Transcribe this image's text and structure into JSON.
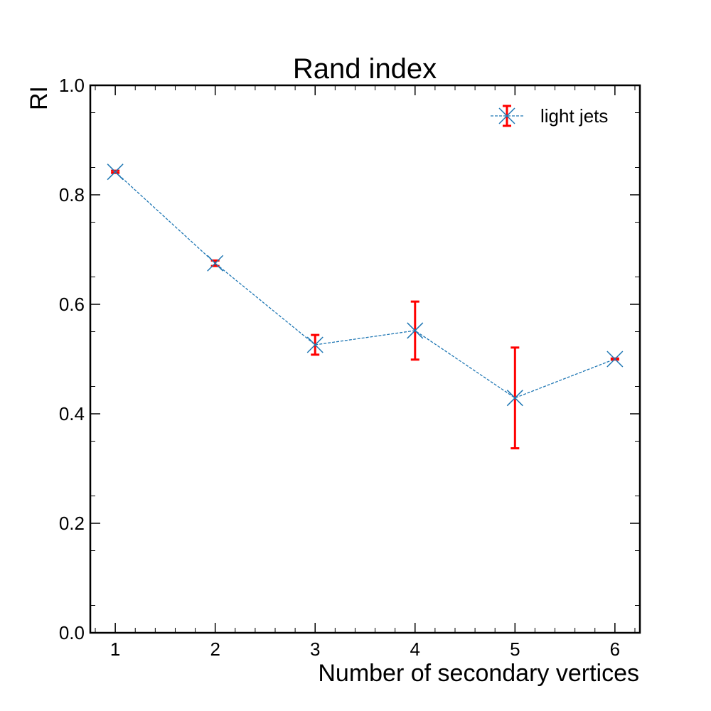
{
  "chart_data": {
    "type": "line",
    "title": "Rand index",
    "xlabel": "Number of secondary vertices",
    "ylabel": "RI",
    "xlim": [
      0.75,
      6.25
    ],
    "ylim": [
      0.0,
      1.0
    ],
    "x_ticks": [
      "1",
      "2",
      "3",
      "4",
      "5",
      "6"
    ],
    "y_ticks": [
      "0.0",
      "0.2",
      "0.4",
      "0.6",
      "0.8",
      "1.0"
    ],
    "grid": false,
    "legend_position": "top-right",
    "series": [
      {
        "name": "light jets",
        "x": [
          1,
          2,
          3,
          4,
          5,
          6
        ],
        "y": [
          0.842,
          0.675,
          0.526,
          0.552,
          0.429,
          0.5
        ],
        "yerr": [
          0.002,
          0.005,
          0.018,
          0.053,
          0.092,
          0.001
        ],
        "line_color": "#1f77b4",
        "line_style": "dashed",
        "marker": "x",
        "error_color": "#ff0000"
      }
    ]
  }
}
